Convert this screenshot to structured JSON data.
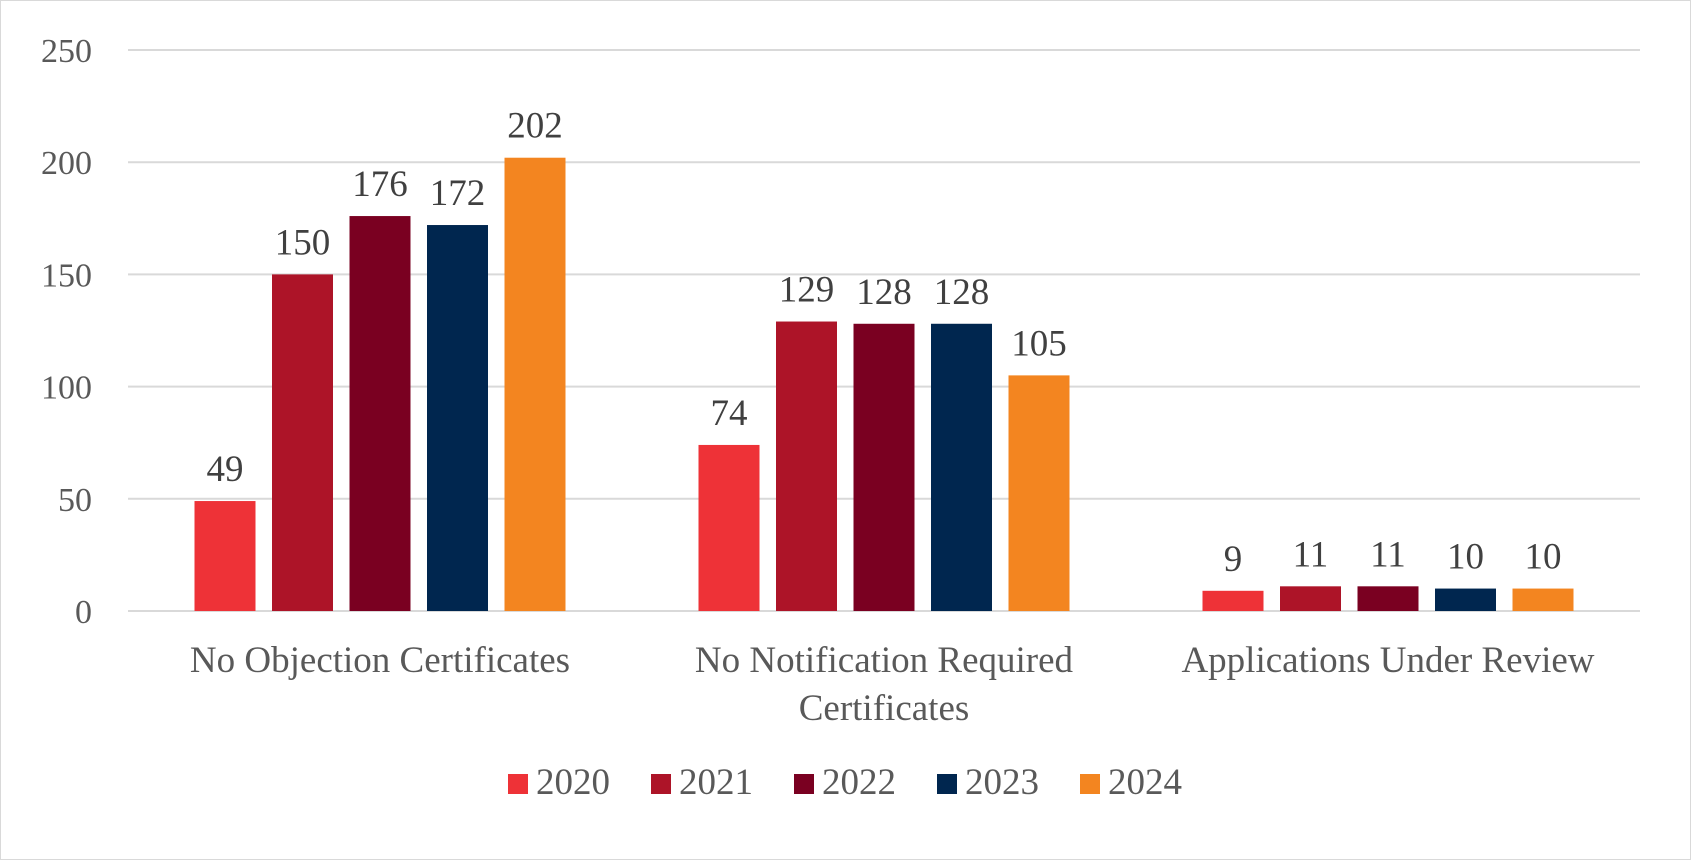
{
  "chart_data": {
    "type": "bar",
    "title": "",
    "xlabel": "",
    "ylabel": "",
    "ylim": [
      0,
      250
    ],
    "yticks": [
      0,
      50,
      100,
      150,
      200,
      250
    ],
    "grid": true,
    "legend_position": "bottom",
    "categories": [
      [
        "No Objection Certificates"
      ],
      [
        "No Notification Required",
        "Certificates"
      ],
      [
        "Applications Under Review"
      ]
    ],
    "series": [
      {
        "name": "2020",
        "color": "#ee3237",
        "values": [
          49,
          74,
          9
        ]
      },
      {
        "name": "2021",
        "color": "#ad1428",
        "values": [
          150,
          129,
          11
        ]
      },
      {
        "name": "2022",
        "color": "#7a0021",
        "values": [
          176,
          128,
          11
        ]
      },
      {
        "name": "2023",
        "color": "#00264f",
        "values": [
          172,
          128,
          10
        ]
      },
      {
        "name": "2024",
        "color": "#f38520",
        "values": [
          202,
          105,
          10
        ]
      }
    ]
  }
}
